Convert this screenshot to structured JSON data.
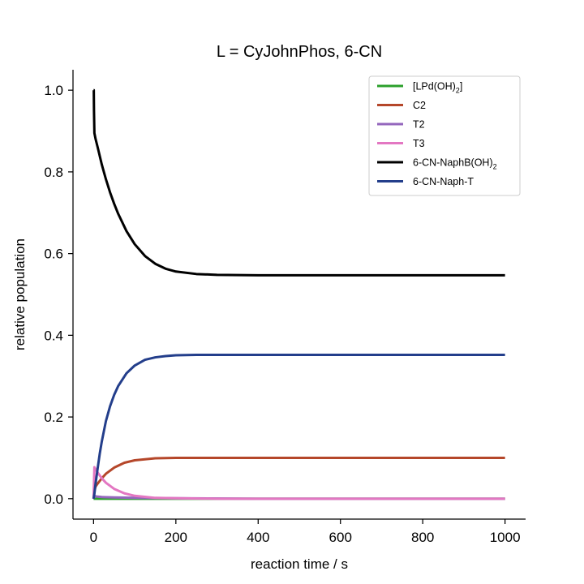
{
  "chart_data": {
    "type": "line",
    "title": "L = CyJohnPhos, 6-CN",
    "xlabel": "reaction time / s",
    "ylabel": "relative population",
    "xlim": [
      -50,
      1050
    ],
    "ylim": [
      -0.05,
      1.05
    ],
    "xticks": [
      0,
      200,
      400,
      600,
      800,
      1000
    ],
    "yticks": [
      0.0,
      0.2,
      0.4,
      0.6,
      0.8,
      1.0
    ],
    "xtick_labels": [
      "0",
      "200",
      "400",
      "600",
      "800",
      "1000"
    ],
    "ytick_labels": [
      "0.0",
      "0.2",
      "0.4",
      "0.6",
      "0.8",
      "1.0"
    ],
    "grid": false,
    "legend_position": "top-right",
    "series": [
      {
        "name": "[LPd(OH)2]",
        "legend_text": "[LPd(OH)",
        "legend_sub": "2",
        "legend_suffix": "]",
        "color": "#2ca02c",
        "x": [
          0,
          2,
          5,
          10,
          20,
          50,
          100,
          200,
          400,
          600,
          800,
          1000
        ],
        "y": [
          0.0,
          0.0,
          0.0,
          0.0,
          0.0,
          0.0,
          0.0,
          0.0,
          0.0,
          0.0,
          0.0,
          0.0
        ]
      },
      {
        "name": "C2",
        "legend_text": "C2",
        "color": "#b5472a",
        "x": [
          0,
          2,
          5,
          10,
          20,
          30,
          50,
          75,
          100,
          150,
          200,
          300,
          400,
          600,
          800,
          1000
        ],
        "y": [
          0.0,
          0.02,
          0.03,
          0.037,
          0.05,
          0.061,
          0.076,
          0.088,
          0.094,
          0.099,
          0.1,
          0.1,
          0.1,
          0.1,
          0.1,
          0.1
        ]
      },
      {
        "name": "T2",
        "legend_text": "T2",
        "color": "#9467bd",
        "x": [
          0,
          2,
          5,
          10,
          20,
          50,
          100,
          200,
          400,
          600,
          800,
          1000
        ],
        "y": [
          0.0,
          0.006,
          0.006,
          0.005,
          0.004,
          0.003,
          0.002,
          0.001,
          0.0,
          0.0,
          0.0,
          0.0
        ]
      },
      {
        "name": "T3",
        "legend_text": "T3",
        "color": "#e377c2",
        "x": [
          0,
          1,
          2,
          5,
          10,
          20,
          30,
          50,
          75,
          100,
          150,
          200,
          300,
          400,
          600,
          800,
          1000
        ],
        "y": [
          0.0,
          0.04,
          0.077,
          0.072,
          0.064,
          0.05,
          0.039,
          0.024,
          0.013,
          0.007,
          0.002,
          0.001,
          0.0,
          0.0,
          0.0,
          0.0,
          0.0
        ]
      },
      {
        "name": "6-CN-NaphB(OH)2",
        "legend_text": "6-CN-NaphB(OH)",
        "legend_sub": "2",
        "legend_suffix": "",
        "color": "#000000",
        "x": [
          0,
          0.5,
          1,
          2,
          5,
          10,
          20,
          30,
          40,
          50,
          60,
          80,
          100,
          125,
          150,
          175,
          200,
          250,
          300,
          400,
          600,
          800,
          1000
        ],
        "y": [
          1.0,
          1.0,
          0.95,
          0.895,
          0.88,
          0.86,
          0.818,
          0.782,
          0.75,
          0.722,
          0.697,
          0.655,
          0.623,
          0.594,
          0.575,
          0.563,
          0.556,
          0.55,
          0.548,
          0.547,
          0.547,
          0.547,
          0.547
        ]
      },
      {
        "name": "6-CN-Naph-T",
        "legend_text": "6-CN-Naph-T",
        "color": "#233e8b",
        "x": [
          0,
          2,
          5,
          10,
          15,
          20,
          30,
          40,
          50,
          60,
          80,
          100,
          125,
          150,
          175,
          200,
          250,
          300,
          400,
          600,
          800,
          1000
        ],
        "y": [
          0.0,
          0.012,
          0.038,
          0.075,
          0.11,
          0.14,
          0.19,
          0.226,
          0.254,
          0.276,
          0.307,
          0.326,
          0.34,
          0.346,
          0.349,
          0.351,
          0.352,
          0.352,
          0.352,
          0.352,
          0.352,
          0.352
        ]
      }
    ]
  }
}
